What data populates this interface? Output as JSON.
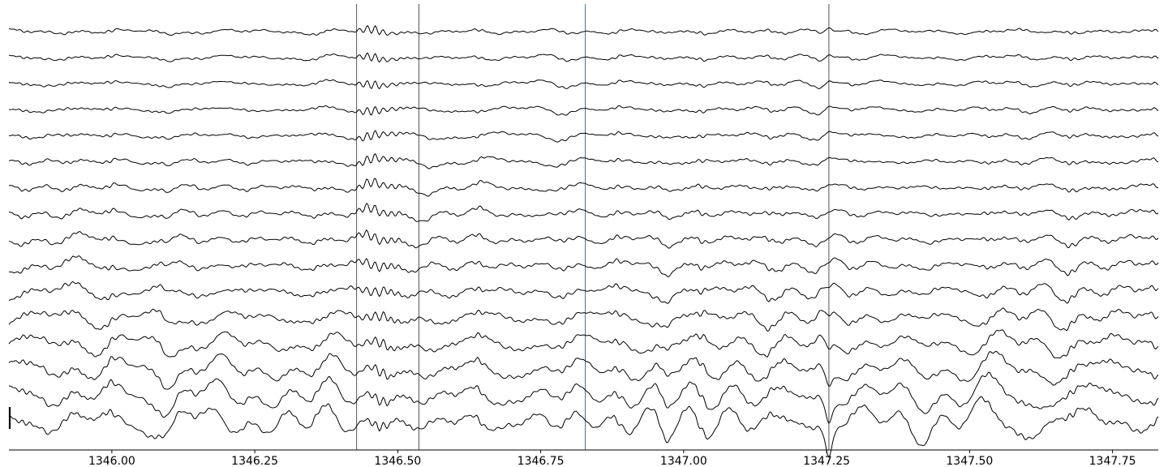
{
  "chart_data": {
    "type": "line",
    "title": "",
    "xlabel": "",
    "ylabel": "",
    "xlim": [
      1345.82,
      1347.83
    ],
    "xticks": [
      1346.0,
      1346.25,
      1346.5,
      1346.75,
      1347.0,
      1347.25,
      1347.5,
      1347.75
    ],
    "xtick_labels": [
      "1346.00",
      "1346.25",
      "1346.50",
      "1346.75",
      "1347.00",
      "1347.25",
      "1347.50",
      "1347.75"
    ],
    "channel_count": 16,
    "markers": [
      {
        "x": 1346.428,
        "color": "#555555"
      },
      {
        "x": 1346.537,
        "color": "#555555"
      },
      {
        "x": 1346.828,
        "color": "#1f77b4"
      },
      {
        "x": 1347.254,
        "color": "#555555"
      }
    ],
    "events": [
      {
        "x": 1346.1,
        "amp": -0.9,
        "width": 0.012
      },
      {
        "x": 1346.46,
        "amp": 0.0,
        "width": 0.03,
        "oscillatory": true
      },
      {
        "x": 1346.56,
        "amp": -0.8,
        "width": 0.02
      },
      {
        "x": 1346.97,
        "amp": -0.7,
        "width": 0.01
      },
      {
        "x": 1347.254,
        "amp": 1.6,
        "width": 0.008,
        "polarity_flip": true
      }
    ],
    "grid": false,
    "legend": "none",
    "scale_bar": true
  }
}
